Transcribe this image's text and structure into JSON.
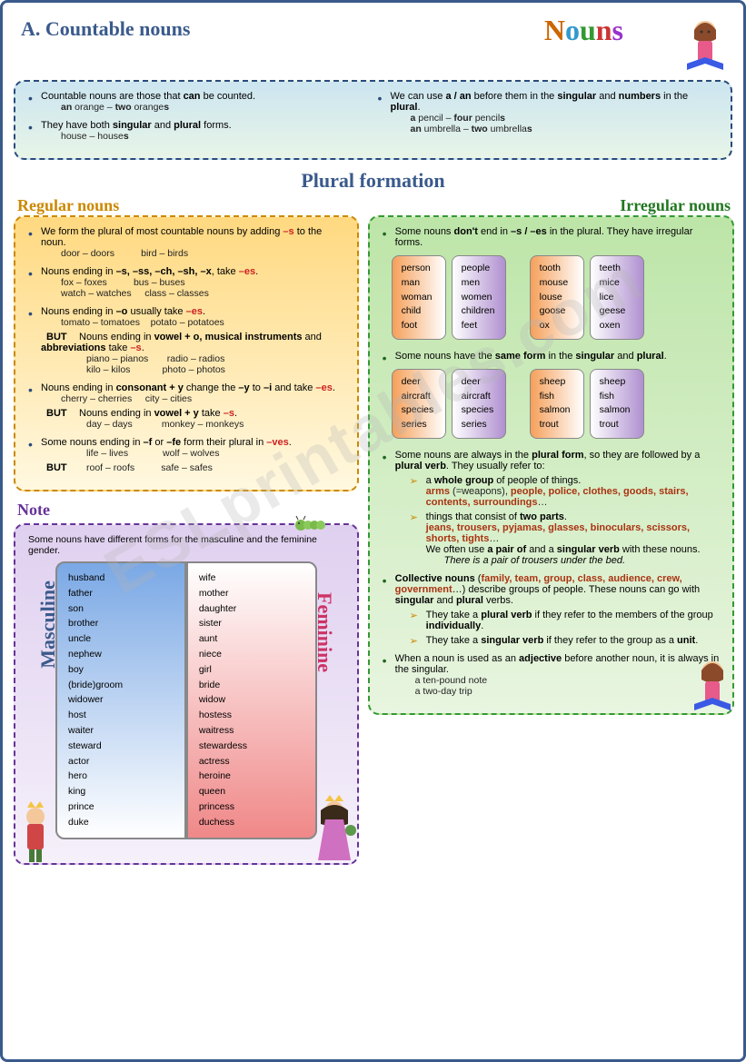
{
  "title_letters": [
    "N",
    "o",
    "u",
    "n",
    "s"
  ],
  "sectionA": "A. Countable nouns",
  "intro": {
    "l1": "Countable nouns are those that ",
    "l1b": "can",
    "l1c": " be counted.",
    "l1ex": "an orange – two oranges",
    "l2": "They have both ",
    "l2b": "singular",
    "l2c": " and ",
    "l2d": "plural",
    "l2e": " forms.",
    "l2ex": "house – houses",
    "r1": "We can use ",
    "r1b": "a / an",
    "r1c": " before them in the ",
    "r1d": "singular",
    "r1e": " and ",
    "r1f": "numbers",
    "r1g": " in the ",
    "r1h": "plural",
    "r1i": ".",
    "r1ex1": "a pencil – four pencils",
    "r1ex2": "an umbrella – two umbrellas"
  },
  "plural_title": "Plural formation",
  "regular_title": "Regular nouns",
  "irregular_title": "Irregular nouns",
  "reg": {
    "p1": "We form the plural of most countable nouns by adding ",
    "p1s": "–s",
    "p1c": " to the noun.",
    "p1ex": "door – doors          bird – birds",
    "p2": "Nouns ending in ",
    "p2a": "–s, –ss, –ch, –sh, –x",
    "p2b": ", take ",
    "p2s": "–es",
    "p2c": ".",
    "p2ex1": "fox – foxes          bus – buses",
    "p2ex2": "watch – watches     class – classes",
    "p3": "Nouns ending in ",
    "p3a": "–o",
    "p3b": " usually take ",
    "p3s": "–es",
    "p3c": ".",
    "p3ex": "tomato – tomatoes    potato – potatoes",
    "but1": "BUT",
    "p3but": "Nouns ending in ",
    "p3but1": "vowel + o, musical instruments",
    "p3but2": " and ",
    "p3but3": "abbreviations",
    "p3but4": " take ",
    "p3buts": "–s",
    "p3but5": ".",
    "p3bex1": "piano – pianos       radio – radios",
    "p3bex2": "kilo – kilos            photo – photos",
    "p4": "Nouns ending in ",
    "p4a": "consonant + y",
    "p4b": " change the ",
    "p4c": "–y",
    "p4d": " to ",
    "p4e": "–i",
    "p4f": " and take ",
    "p4s": "–es",
    "p4g": ".",
    "p4ex": "cherry – cherries     city – cities",
    "but2": "BUT",
    "p4but": "Nouns ending in ",
    "p4but1": "vowel + y",
    "p4but2": " take ",
    "p4buts": "–s",
    "p4but3": ".",
    "p4bex": "day – days           monkey – monkeys",
    "p5": "Some nouns ending in ",
    "p5a": "–f",
    "p5b": " or ",
    "p5c": "–fe",
    "p5d": " form their plural in ",
    "p5s": "–ves",
    "p5e": ".",
    "p5ex": "life – lives             wolf – wolves",
    "but3": "BUT",
    "p5bex": "roof – roofs          safe – safes"
  },
  "irreg": {
    "p1": "Some nouns ",
    "p1b": "don't",
    "p1c": " end in  ",
    "p1d": "–s / –es",
    "p1e": " in the plural. They have irregular forms.",
    "pills1": [
      [
        "person",
        "man",
        "woman",
        "child",
        "foot"
      ],
      [
        "people",
        "men",
        "women",
        "children",
        "feet"
      ],
      [
        "tooth",
        "mouse",
        "louse",
        "goose",
        "ox"
      ],
      [
        "teeth",
        "mice",
        "lice",
        "geese",
        "oxen"
      ]
    ],
    "p2": "Some nouns have the ",
    "p2b": "same form",
    "p2c": " in the ",
    "p2d": "singular",
    "p2e": " and ",
    "p2f": "plural",
    "p2g": ".",
    "pills2": [
      [
        "deer",
        "aircraft",
        "species",
        "series"
      ],
      [
        "deer",
        "aircraft",
        "species",
        "series"
      ],
      [
        "sheep",
        "fish",
        "salmon",
        "trout"
      ],
      [
        "sheep",
        "fish",
        "salmon",
        "trout"
      ]
    ],
    "p3": "Some nouns are always in the ",
    "p3b": "plural form",
    "p3c": ", so they are followed by a ",
    "p3d": "plural verb",
    "p3e": ". They usually refer to:",
    "a1": "a ",
    "a1b": "whole group",
    "a1c": " of people of things.",
    "a1ex": "arms (=weapons), people, police, clothes, goods, stairs, contents, surroundings",
    "a2": "things that consist of ",
    "a2b": "two parts",
    "a2c": ".",
    "a2ex": "jeans, trousers, pyjamas, glasses, binoculars, scissors, shorts, tights",
    "a2d": "We often use ",
    "a2e": "a pair of",
    "a2f": " and a ",
    "a2g": "singular verb",
    "a2h": " with these nouns.",
    "a2i": "There is a pair of trousers under the bed.",
    "p4": "Collective nouns",
    "p4b": " (",
    "p4ex": "family, team, group, class, audience, crew, government",
    "p4c": "…) describe groups of people. These nouns can go with ",
    "p4d": "singular",
    "p4e": " and ",
    "p4f": "plural",
    "p4g": " verbs.",
    "c1": "They take a ",
    "c1b": "plural verb",
    "c1c": " if they refer to the members of the group ",
    "c1d": "individually",
    "c1e": ".",
    "c2": "They take a ",
    "c2b": "singular verb",
    "c2c": " if they refer to the group as a ",
    "c2d": "unit",
    "c2e": ".",
    "p5": "When a noun is used as an ",
    "p5b": "adjective",
    "p5c": " before another noun, it is always in the singular.",
    "p5ex1": "a ten-pound note",
    "p5ex2": "a two-day trip"
  },
  "note_title": "Note",
  "note_intro": "Some nouns have different forms for the masculine and the feminine gender.",
  "masc_label": "Masculine",
  "fem_label": "Feminine",
  "masc": [
    "husband",
    "father",
    "son",
    "brother",
    "uncle",
    "nephew",
    "boy",
    "(bride)groom",
    "widower",
    "host",
    "waiter",
    "steward",
    "actor",
    "hero",
    "king",
    "prince",
    "duke"
  ],
  "fem": [
    "wife",
    "mother",
    "daughter",
    "sister",
    "aunt",
    "niece",
    "girl",
    "bride",
    "widow",
    "hostess",
    "waitress",
    "stewardess",
    "actress",
    "heroine",
    "queen",
    "princess",
    "duchess"
  ]
}
